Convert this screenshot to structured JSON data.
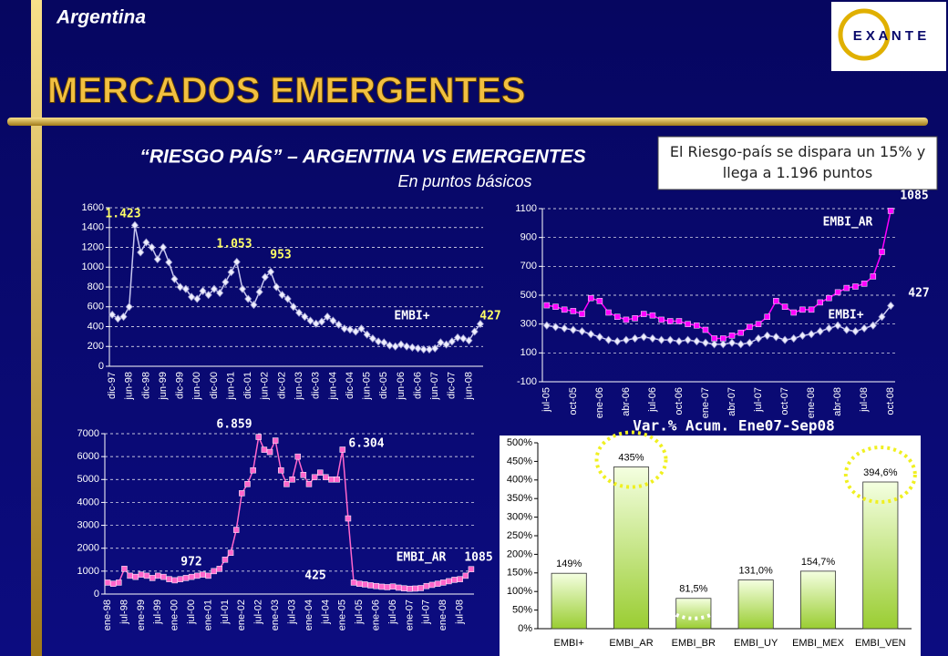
{
  "header": {
    "country": "Argentina",
    "title": "MERCADOS EMERGENTES",
    "logo": "E X A N T E",
    "subtitle": "“RIESGO PAÍS” – ARGENTINA VS EMERGENTES",
    "subtitle2": "En puntos básicos",
    "note": "El Riesgo-país se dispara un 15% y llega a 1.196 puntos"
  },
  "chart_data": [
    {
      "type": "line",
      "ylim": [
        0,
        1600
      ],
      "yticks": [
        0,
        200,
        400,
        600,
        800,
        1000,
        1200,
        1400,
        1600
      ],
      "grid": true,
      "categories": [
        "dic-97",
        null,
        null,
        "jun-98",
        null,
        null,
        "dic-98",
        null,
        null,
        "jun-99",
        null,
        null,
        "dic-99",
        null,
        null,
        "jun-00",
        null,
        null,
        "dic-00",
        null,
        null,
        "jun-01",
        null,
        null,
        "dic-01",
        null,
        null,
        "jun-02",
        null,
        null,
        "dic-02",
        null,
        null,
        "jun-03",
        null,
        null,
        "dic-03",
        null,
        null,
        "jun-04",
        null,
        null,
        "dic-04",
        null,
        null,
        "jun-05",
        null,
        null,
        "dic-05",
        null,
        null,
        "jun-06",
        null,
        null,
        "dic-06",
        null,
        null,
        "jun-07",
        null,
        null,
        "dic-07",
        null,
        null,
        "jun-08",
        null,
        null
      ],
      "series": [
        {
          "name": "EMBI+",
          "color": "#c8c8f0",
          "marker": "diamond",
          "values": [
            520,
            480,
            500,
            600,
            1423,
            1150,
            1250,
            1200,
            1080,
            1200,
            1050,
            880,
            800,
            780,
            700,
            680,
            760,
            720,
            780,
            740,
            850,
            950,
            1053,
            780,
            680,
            620,
            750,
            900,
            953,
            800,
            720,
            680,
            600,
            540,
            500,
            460,
            430,
            450,
            500,
            460,
            420,
            380,
            370,
            350,
            380,
            320,
            280,
            250,
            240,
            210,
            200,
            220,
            200,
            190,
            180,
            170,
            170,
            180,
            240,
            220,
            250,
            290,
            280,
            260,
            350,
            427
          ]
        }
      ],
      "annotations": [
        "1.423",
        "1.053",
        "953",
        "427"
      ]
    },
    {
      "type": "line",
      "ylim": [
        -100,
        1100
      ],
      "yticks": [
        -100,
        100,
        300,
        500,
        700,
        900,
        1100
      ],
      "grid": true,
      "categories": [
        "jul-05",
        null,
        null,
        "oct-05",
        null,
        null,
        "ene-06",
        null,
        null,
        "abr-06",
        null,
        null,
        "jul-06",
        null,
        null,
        "oct-06",
        null,
        null,
        "ene-07",
        null,
        null,
        "abr-07",
        null,
        null,
        "jul-07",
        null,
        null,
        "oct-07",
        null,
        null,
        "ene-08",
        null,
        null,
        "abr-08",
        null,
        null,
        "jul-08",
        null,
        null,
        "oct-08"
      ],
      "series": [
        {
          "name": "EMBI_AR",
          "color": "#ff00ff",
          "marker": "square",
          "values": [
            430,
            420,
            400,
            390,
            370,
            480,
            460,
            380,
            350,
            330,
            340,
            370,
            360,
            330,
            320,
            320,
            300,
            290,
            260,
            200,
            200,
            220,
            240,
            280,
            300,
            350,
            460,
            420,
            380,
            400,
            400,
            450,
            480,
            520,
            550,
            560,
            580,
            630,
            800,
            1085
          ]
        },
        {
          "name": "EMBI+",
          "color": "#c8c8f0",
          "marker": "diamond",
          "values": [
            290,
            280,
            270,
            260,
            250,
            230,
            210,
            190,
            180,
            190,
            200,
            210,
            200,
            190,
            190,
            180,
            190,
            180,
            170,
            160,
            160,
            170,
            160,
            170,
            200,
            220,
            210,
            190,
            200,
            220,
            230,
            250,
            270,
            290,
            260,
            250,
            270,
            290,
            350,
            427
          ]
        }
      ],
      "annotations": [
        "1085",
        "427"
      ]
    },
    {
      "type": "line",
      "ylim": [
        0,
        7000
      ],
      "yticks": [
        0,
        1000,
        2000,
        3000,
        4000,
        5000,
        6000,
        7000
      ],
      "grid": true,
      "categories": [
        "ene-98",
        null,
        null,
        "jul-98",
        null,
        null,
        "ene-99",
        null,
        null,
        "jul-99",
        null,
        null,
        "ene-00",
        null,
        null,
        "jul-00",
        null,
        null,
        "ene-01",
        null,
        null,
        "jul-01",
        null,
        null,
        "ene-02",
        null,
        null,
        "jul-02",
        null,
        null,
        "ene-03",
        null,
        null,
        "jul-03",
        null,
        null,
        "ene-04",
        null,
        null,
        "jul-04",
        null,
        null,
        "ene-05",
        null,
        null,
        "jul-05",
        null,
        null,
        "ene-06",
        null,
        null,
        "jul-06",
        null,
        null,
        "ene-07",
        null,
        null,
        "jul-07",
        null,
        null,
        "ene-08",
        null,
        null,
        "jul-08",
        null,
        null
      ],
      "series": [
        {
          "name": "EMBI_AR",
          "color": "#ff66cc",
          "marker": "square",
          "values": [
            500,
            450,
            500,
            1100,
            800,
            750,
            850,
            800,
            700,
            800,
            750,
            650,
            600,
            650,
            700,
            750,
            800,
            850,
            800,
            1000,
            1100,
            1500,
            1800,
            2800,
            4400,
            4800,
            5400,
            6859,
            6300,
            6200,
            6700,
            5400,
            4800,
            5000,
            6000,
            5200,
            4800,
            5100,
            5300,
            5100,
            5000,
            5000,
            6304,
            3300,
            500,
            450,
            420,
            380,
            350,
            320,
            300,
            330,
            280,
            250,
            230,
            240,
            260,
            350,
            400,
            450,
            500,
            560,
            620,
            650,
            800,
            1085
          ]
        }
      ],
      "annotations": [
        "6.859",
        "6.304",
        "972",
        "425",
        "1085"
      ]
    },
    {
      "type": "bar",
      "title": "Var.% Acum. Ene07-Sep08",
      "color": "#b8e070",
      "categories": [
        "EMBI+",
        "EMBI_AR",
        "EMBI_BR",
        "EMBI_UY",
        "EMBI_MEX",
        "EMBI_VEN"
      ],
      "values": [
        149,
        435,
        81.5,
        131,
        154.7,
        394.6
      ],
      "value_labels": [
        "149%",
        "435%",
        "81,5%",
        "131,0%",
        "154,7%",
        "394,6%"
      ],
      "ylim": [
        0,
        500
      ],
      "yticks": [
        {
          "value": 0,
          "label": "0%"
        },
        {
          "value": 50,
          "label": "50%"
        },
        {
          "value": 100,
          "label": "100%"
        },
        {
          "value": 150,
          "label": "150%"
        },
        {
          "value": 200,
          "label": "200%"
        },
        {
          "value": 250,
          "label": "250%"
        },
        {
          "value": 300,
          "label": "300%"
        },
        {
          "value": 350,
          "label": "350%"
        },
        {
          "value": 400,
          "label": "400%"
        },
        {
          "value": 450,
          "label": "450%"
        },
        {
          "value": 500,
          "label": "500%"
        }
      ]
    }
  ]
}
